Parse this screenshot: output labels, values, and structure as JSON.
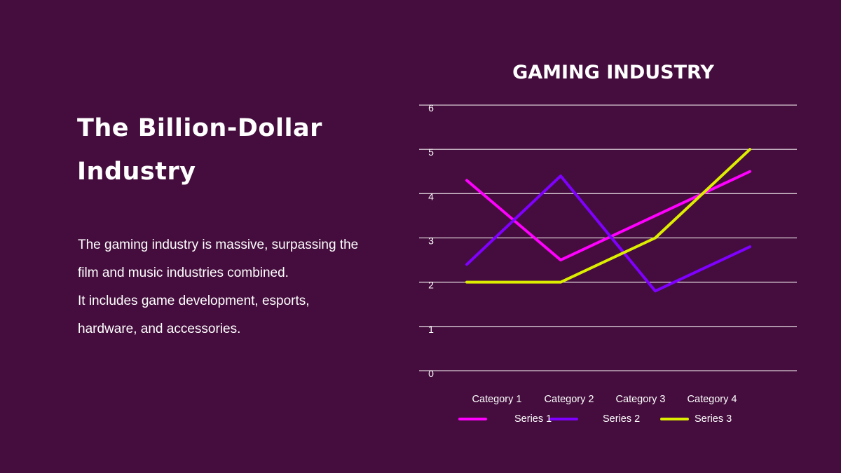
{
  "slide": {
    "title": "The Billion-Dollar Industry",
    "paragraphs": [
      "The gaming industry is massive, surpassing the film and music industries combined.",
      "It includes game development, esports, hardware, and accessories."
    ]
  },
  "chart_data": {
    "type": "line",
    "title": "GAMING INDUSTRY",
    "categories": [
      "Category 1",
      "Category 2",
      "Category 3",
      "Category 4"
    ],
    "series": [
      {
        "name": "Series 1",
        "values": [
          4.3,
          2.5,
          3.5,
          4.5
        ],
        "color": "#ff00ff"
      },
      {
        "name": "Series 2",
        "values": [
          2.4,
          4.4,
          1.8,
          2.8
        ],
        "color": "#8000ff"
      },
      {
        "name": "Series 3",
        "values": [
          2,
          2,
          3,
          5
        ],
        "color": "#ddee00"
      }
    ],
    "ylim": [
      0,
      6
    ],
    "yticks": [
      "0",
      "1",
      "2",
      "3",
      "4",
      "5",
      "6"
    ],
    "grid": true,
    "legend": "bottom",
    "background": "#440d3d"
  }
}
